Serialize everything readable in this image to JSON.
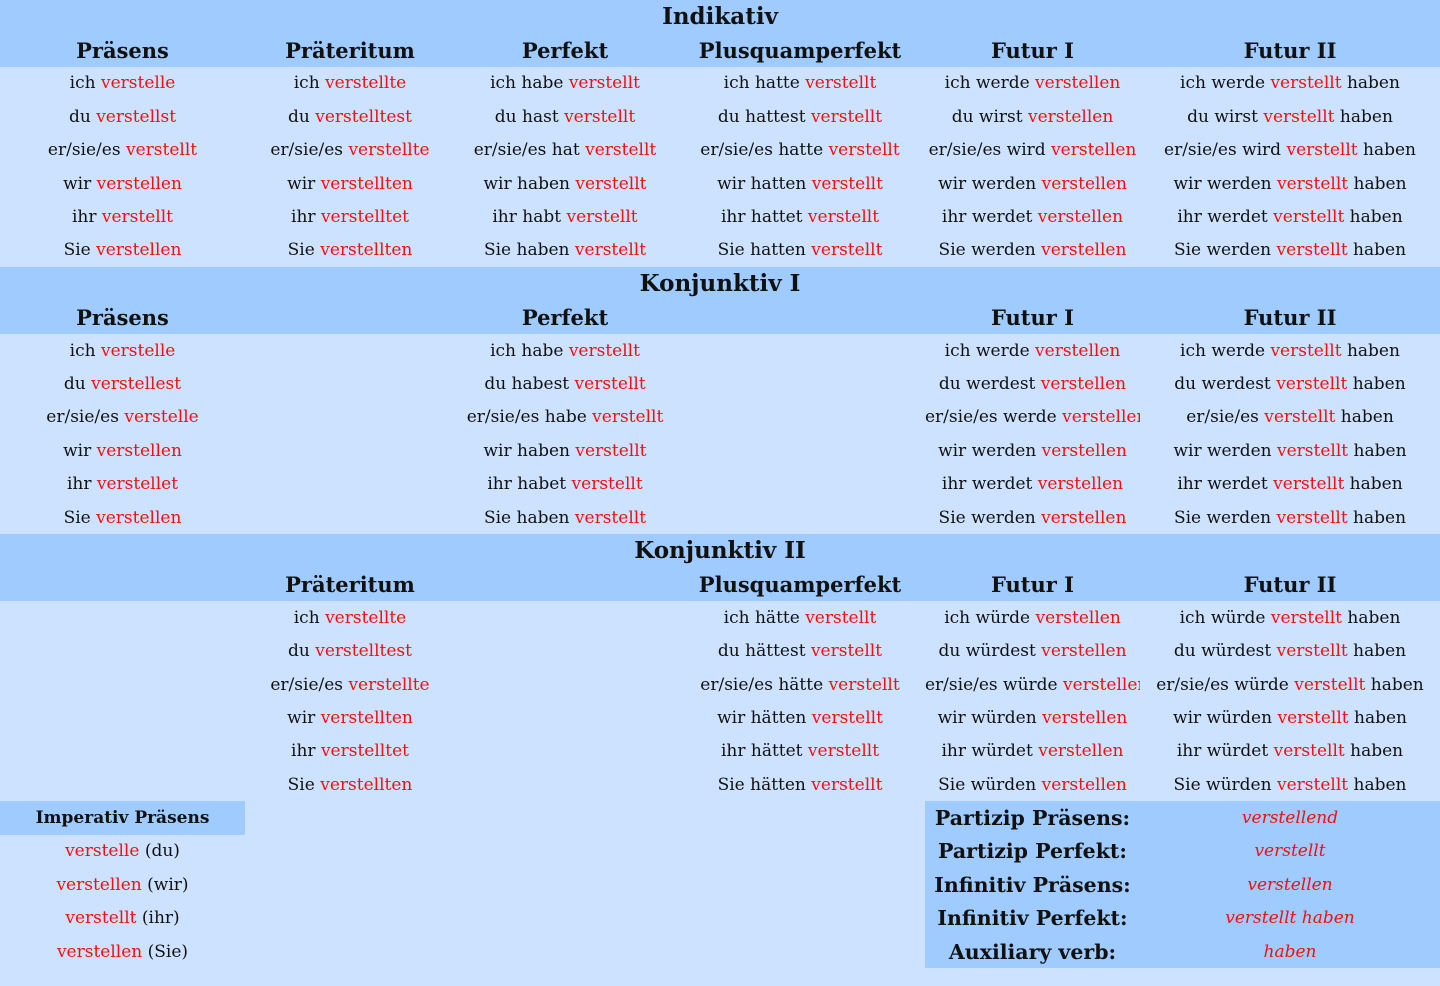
{
  "colors": {
    "header_bg": "#9fcbfe",
    "body_bg": "#cce2fe",
    "verb_red": "#ee1111"
  },
  "indikativ": {
    "title": "Indikativ",
    "tenses": [
      "Präsens",
      "Präteritum",
      "Perfekt",
      "Plusquamperfekt",
      "Futur I",
      "Futur II"
    ],
    "rows": [
      [
        [
          "ich ",
          "verstelle",
          ""
        ],
        [
          "ich ",
          "verstellte",
          ""
        ],
        [
          "ich habe ",
          "verstellt",
          ""
        ],
        [
          "ich hatte ",
          "verstellt",
          ""
        ],
        [
          "ich werde ",
          "verstellen",
          ""
        ],
        [
          "ich werde ",
          "verstellt",
          " haben"
        ]
      ],
      [
        [
          "du ",
          "verstellst",
          ""
        ],
        [
          "du ",
          "verstelltest",
          ""
        ],
        [
          "du hast ",
          "verstellt",
          ""
        ],
        [
          "du hattest ",
          "verstellt",
          ""
        ],
        [
          "du wirst ",
          "verstellen",
          ""
        ],
        [
          "du wirst ",
          "verstellt",
          " haben"
        ]
      ],
      [
        [
          "er/sie/es ",
          "verstellt",
          ""
        ],
        [
          "er/sie/es ",
          "verstellte",
          ""
        ],
        [
          "er/sie/es hat ",
          "verstellt",
          ""
        ],
        [
          "er/sie/es hatte ",
          "verstellt",
          ""
        ],
        [
          "er/sie/es wird ",
          "verstellen",
          ""
        ],
        [
          "er/sie/es wird ",
          "verstellt",
          " haben"
        ]
      ],
      [
        [
          "wir ",
          "verstellen",
          ""
        ],
        [
          "wir ",
          "verstellten",
          ""
        ],
        [
          "wir haben ",
          "verstellt",
          ""
        ],
        [
          "wir hatten ",
          "verstellt",
          ""
        ],
        [
          "wir werden ",
          "verstellen",
          ""
        ],
        [
          "wir werden ",
          "verstellt",
          " haben"
        ]
      ],
      [
        [
          "ihr ",
          "verstellt",
          ""
        ],
        [
          "ihr ",
          "verstelltet",
          ""
        ],
        [
          "ihr habt ",
          "verstellt",
          ""
        ],
        [
          "ihr hattet ",
          "verstellt",
          ""
        ],
        [
          "ihr werdet ",
          "verstellen",
          ""
        ],
        [
          "ihr werdet ",
          "verstellt",
          " haben"
        ]
      ],
      [
        [
          "Sie ",
          "verstellen",
          ""
        ],
        [
          "Sie ",
          "verstellten",
          ""
        ],
        [
          "Sie haben ",
          "verstellt",
          ""
        ],
        [
          "Sie hatten ",
          "verstellt",
          ""
        ],
        [
          "Sie werden ",
          "verstellen",
          ""
        ],
        [
          "Sie werden ",
          "verstellt",
          " haben"
        ]
      ]
    ]
  },
  "konjunktiv1": {
    "title": "Konjunktiv I",
    "tenses": [
      "Präsens",
      "",
      "Perfekt",
      "",
      "Futur I",
      "Futur II"
    ],
    "rows": [
      [
        [
          "ich ",
          "verstelle",
          ""
        ],
        null,
        [
          "ich habe ",
          "verstellt",
          ""
        ],
        null,
        [
          "ich werde ",
          "verstellen",
          ""
        ],
        [
          "ich werde ",
          "verstellt",
          " haben"
        ]
      ],
      [
        [
          "du ",
          "verstellest",
          ""
        ],
        null,
        [
          "du habest ",
          "verstellt",
          ""
        ],
        null,
        [
          "du werdest ",
          "verstellen",
          ""
        ],
        [
          "du werdest ",
          "verstellt",
          " haben"
        ]
      ],
      [
        [
          "er/sie/es ",
          "verstelle",
          ""
        ],
        null,
        [
          "er/sie/es habe ",
          "verstellt",
          ""
        ],
        null,
        [
          "er/sie/es werde ",
          "verstellen",
          ""
        ],
        [
          "er/sie/es ",
          "verstellt",
          " haben"
        ]
      ],
      [
        [
          "wir ",
          "verstellen",
          ""
        ],
        null,
        [
          "wir haben ",
          "verstellt",
          ""
        ],
        null,
        [
          "wir werden ",
          "verstellen",
          ""
        ],
        [
          "wir werden ",
          "verstellt",
          " haben"
        ]
      ],
      [
        [
          "ihr ",
          "verstellet",
          ""
        ],
        null,
        [
          "ihr habet ",
          "verstellt",
          ""
        ],
        null,
        [
          "ihr werdet ",
          "verstellen",
          ""
        ],
        [
          "ihr werdet ",
          "verstellt",
          " haben"
        ]
      ],
      [
        [
          "Sie ",
          "verstellen",
          ""
        ],
        null,
        [
          "Sie haben ",
          "verstellt",
          ""
        ],
        null,
        [
          "Sie werden ",
          "verstellen",
          ""
        ],
        [
          "Sie werden ",
          "verstellt",
          " haben"
        ]
      ]
    ]
  },
  "konjunktiv2": {
    "title": "Konjunktiv II",
    "tenses": [
      "",
      "Präteritum",
      "",
      "Plusquamperfekt",
      "Futur I",
      "Futur II"
    ],
    "rows": [
      [
        null,
        [
          "ich ",
          "verstellte",
          ""
        ],
        null,
        [
          "ich hätte ",
          "verstellt",
          ""
        ],
        [
          "ich würde ",
          "verstellen",
          ""
        ],
        [
          "ich würde ",
          "verstellt",
          " haben"
        ]
      ],
      [
        null,
        [
          "du ",
          "verstelltest",
          ""
        ],
        null,
        [
          "du hättest ",
          "verstellt",
          ""
        ],
        [
          "du würdest ",
          "verstellen",
          ""
        ],
        [
          "du würdest ",
          "verstellt",
          " haben"
        ]
      ],
      [
        null,
        [
          "er/sie/es ",
          "verstellte",
          ""
        ],
        null,
        [
          "er/sie/es hätte ",
          "verstellt",
          ""
        ],
        [
          "er/sie/es würde ",
          "verstellen",
          ""
        ],
        [
          "er/sie/es würde ",
          "verstellt",
          " haben"
        ]
      ],
      [
        null,
        [
          "wir ",
          "verstellten",
          ""
        ],
        null,
        [
          "wir hätten ",
          "verstellt",
          ""
        ],
        [
          "wir würden ",
          "verstellen",
          ""
        ],
        [
          "wir würden ",
          "verstellt",
          " haben"
        ]
      ],
      [
        null,
        [
          "ihr ",
          "verstelltet",
          ""
        ],
        null,
        [
          "ihr hättet ",
          "verstellt",
          ""
        ],
        [
          "ihr würdet ",
          "verstellen",
          ""
        ],
        [
          "ihr würdet ",
          "verstellt",
          " haben"
        ]
      ],
      [
        null,
        [
          "Sie ",
          "verstellten",
          ""
        ],
        null,
        [
          "Sie hätten ",
          "verstellt",
          ""
        ],
        [
          "Sie würden ",
          "verstellen",
          ""
        ],
        [
          "Sie würden ",
          "verstellt",
          " haben"
        ]
      ]
    ]
  },
  "imperativ": {
    "title": "Imperativ Präsens",
    "rows": [
      [
        "verstelle",
        " (du)"
      ],
      [
        "verstellen",
        " (wir)"
      ],
      [
        "verstellt",
        " (ihr)"
      ],
      [
        "verstellen",
        " (Sie)"
      ]
    ]
  },
  "forms": [
    {
      "label": "Partizip Präsens:",
      "value": "verstellend"
    },
    {
      "label": "Partizip Perfekt:",
      "value": "verstellt"
    },
    {
      "label": "Infinitiv Präsens:",
      "value": "verstellen"
    },
    {
      "label": "Infinitiv Perfekt:",
      "value": "verstellt haben"
    },
    {
      "label": "Auxiliary verb:",
      "value": "haben"
    }
  ]
}
